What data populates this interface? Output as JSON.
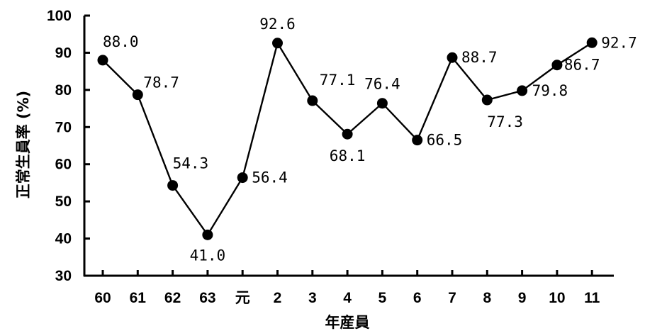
{
  "chart_data": {
    "type": "line",
    "categories": [
      "60",
      "61",
      "62",
      "63",
      "元",
      "2",
      "3",
      "4",
      "5",
      "6",
      "7",
      "8",
      "9",
      "10",
      "11"
    ],
    "series": [
      {
        "values": [
          88.0,
          78.7,
          54.3,
          41.0,
          56.4,
          92.6,
          77.1,
          68.1,
          76.4,
          66.5,
          88.7,
          77.3,
          79.8,
          86.7,
          92.7
        ],
        "labels": [
          "88.0",
          "78.7",
          "54.3",
          "41.0",
          "56.4",
          "92.6",
          "77.1",
          "68.1",
          "76.4",
          "66.5",
          "88.7",
          "77.3",
          "79.8",
          "86.7",
          "92.7"
        ]
      }
    ],
    "xlabel": "年産員",
    "ylabel": "正常生員率 (%)",
    "ylim": [
      30,
      100
    ],
    "yticks": [
      "30",
      "40",
      "50",
      "60",
      "70",
      "80",
      "90",
      "100"
    ],
    "grid": false,
    "legend": "none"
  }
}
